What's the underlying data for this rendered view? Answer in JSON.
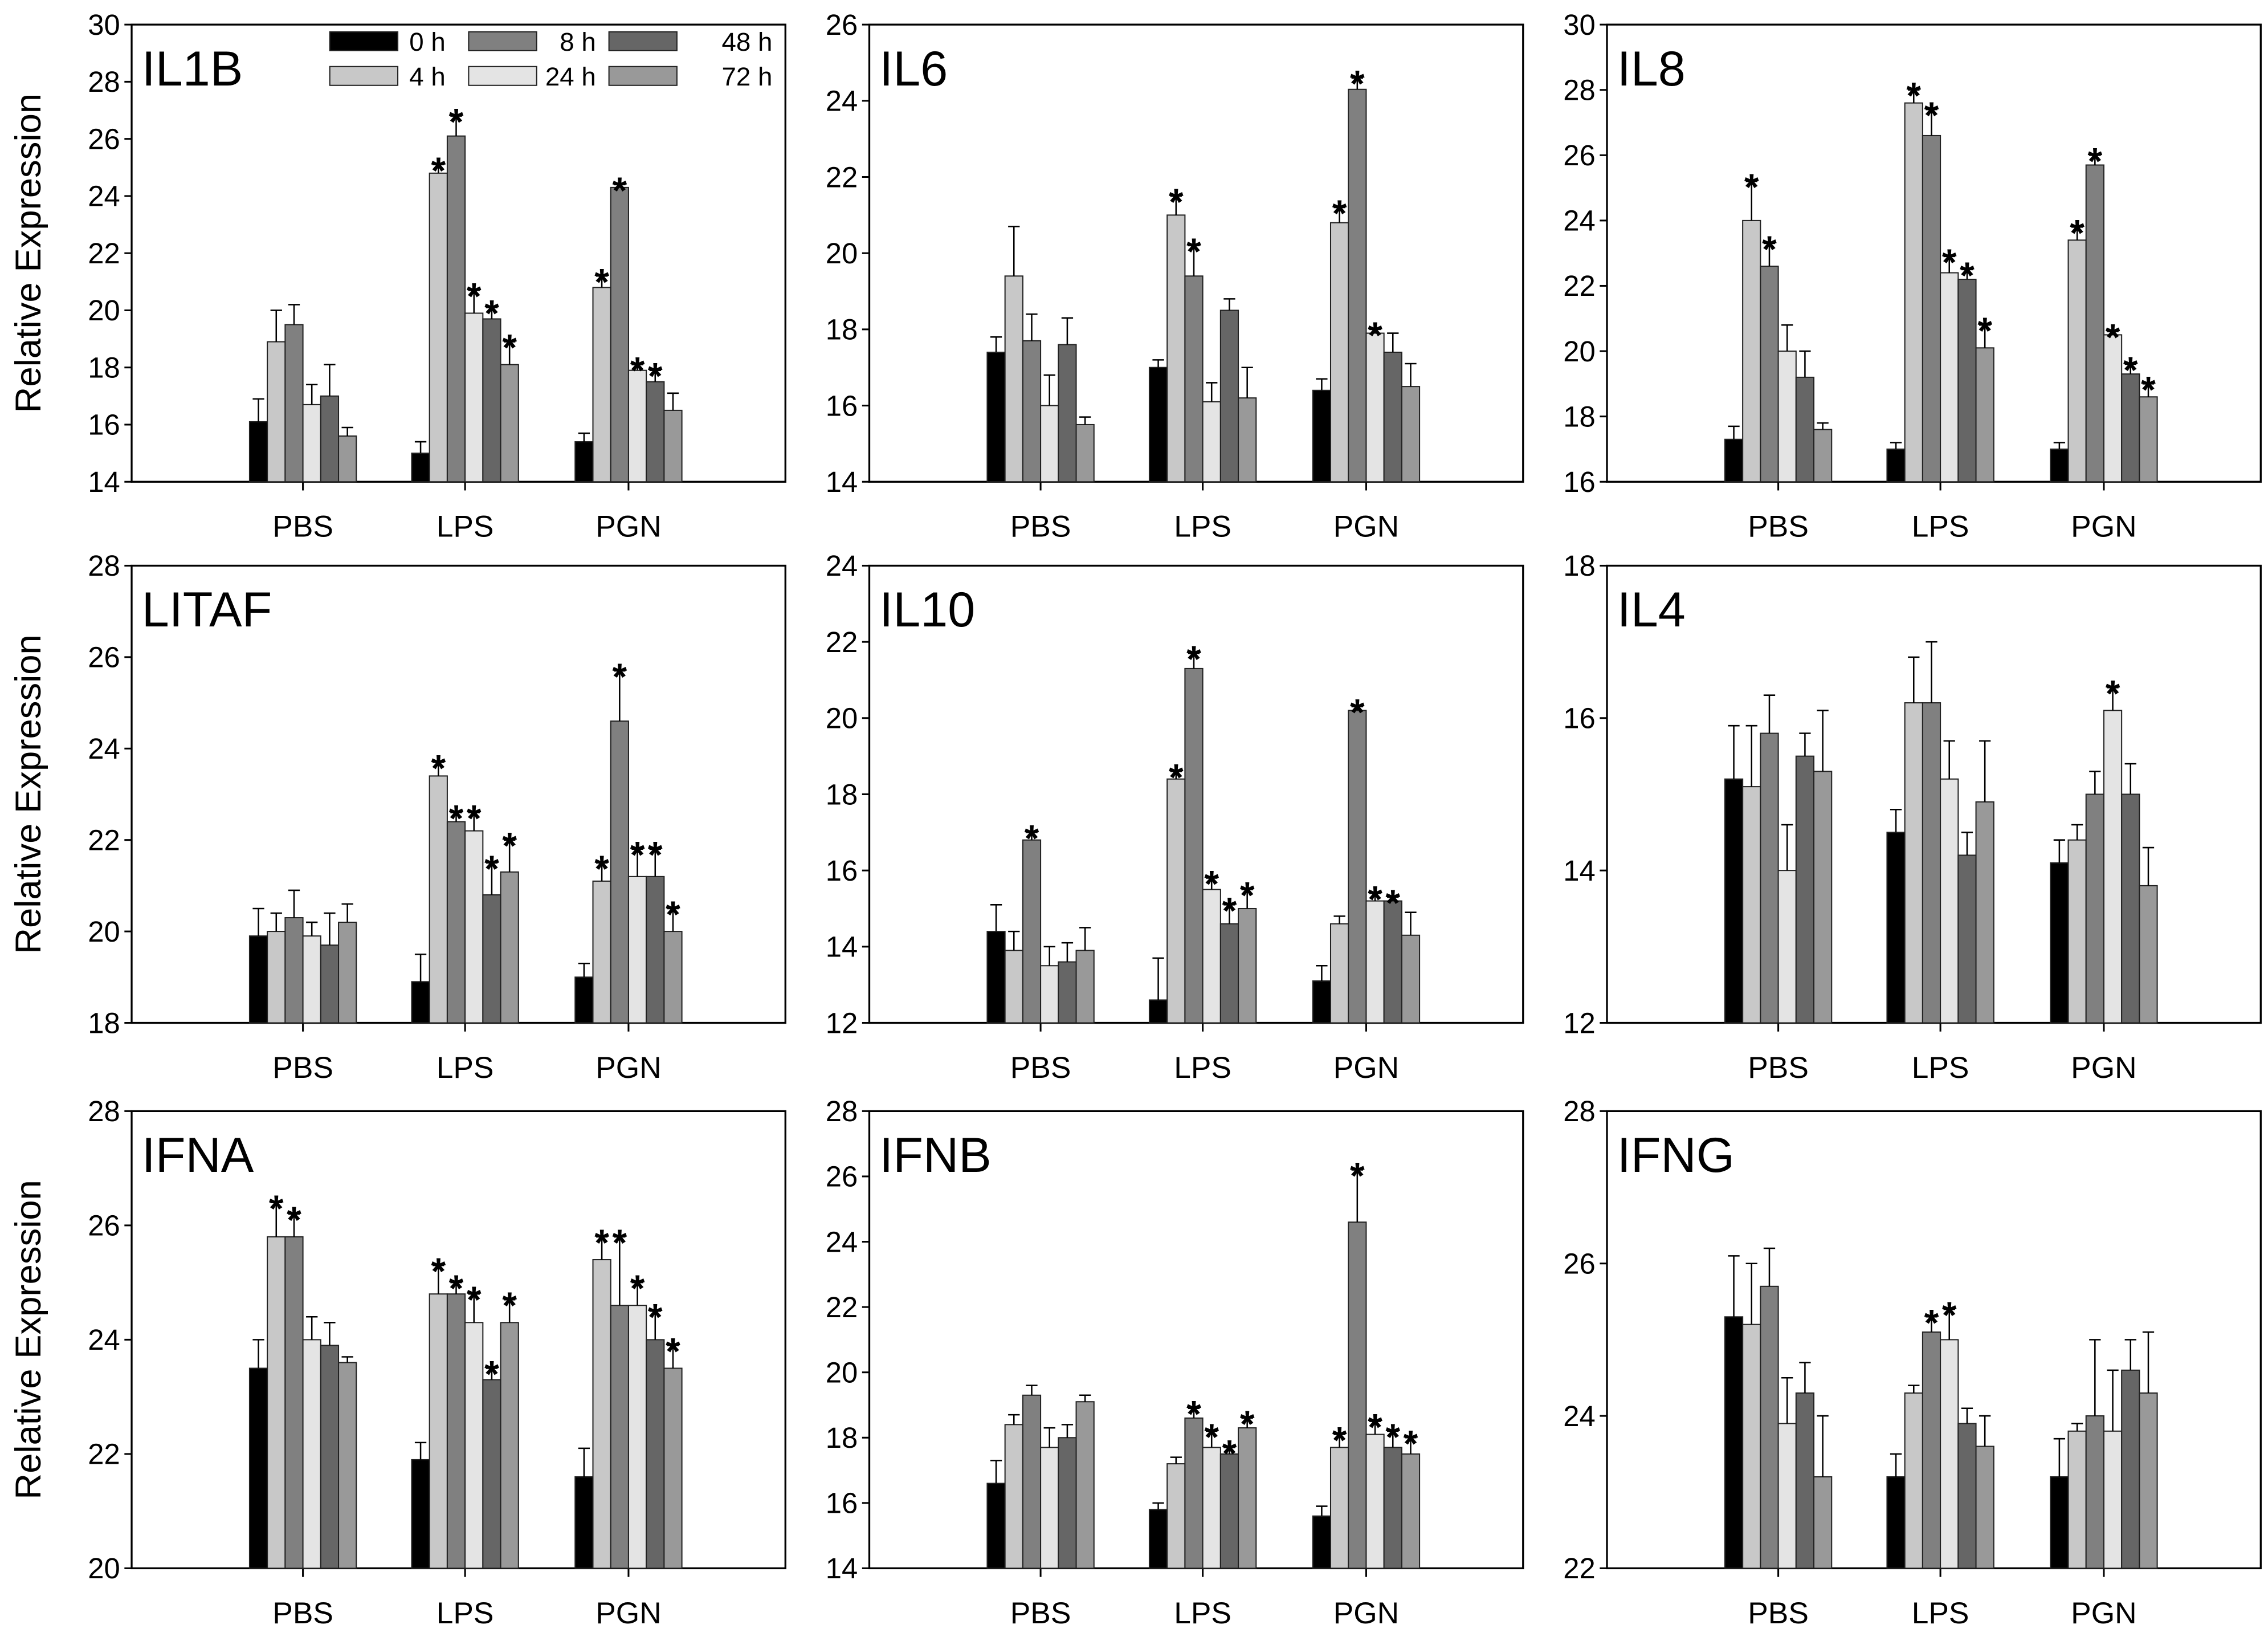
{
  "legend": {
    "entries": [
      "0 h",
      "4 h",
      "8 h",
      "24 h",
      "48 h",
      "72 h"
    ],
    "colors": [
      "#000000",
      "#c8c8c8",
      "#808080",
      "#e4e4e4",
      "#666666",
      "#999999"
    ],
    "placement": "top-right of IL1B panel"
  },
  "ylabel": "Relative Expression",
  "chart_data": [
    {
      "type": "bar",
      "title": "IL1B",
      "ylim": [
        14,
        30
      ],
      "yticks": [
        14,
        16,
        18,
        20,
        22,
        24,
        26,
        28,
        30
      ],
      "categories": [
        "PBS",
        "LPS",
        "PGN"
      ],
      "groups": [
        {
          "category": "PBS",
          "values": [
            16.1,
            18.9,
            19.5,
            16.7,
            17.0,
            15.6
          ],
          "error_upper": [
            16.9,
            20.0,
            20.2,
            17.4,
            18.1,
            15.9
          ],
          "significant": [
            0,
            0,
            0,
            0,
            0,
            0
          ]
        },
        {
          "category": "LPS",
          "values": [
            15.0,
            24.8,
            26.1,
            19.9,
            19.7,
            18.1
          ],
          "error_upper": [
            15.4,
            25.1,
            26.8,
            20.7,
            20.1,
            18.9
          ],
          "significant": [
            0,
            1,
            1,
            1,
            1,
            1
          ]
        },
        {
          "category": "PGN",
          "values": [
            15.4,
            20.8,
            24.3,
            17.9,
            17.5,
            16.5
          ],
          "error_upper": [
            15.7,
            21.2,
            24.4,
            18.1,
            17.9,
            17.1
          ],
          "significant": [
            0,
            1,
            1,
            1,
            1,
            0
          ]
        }
      ]
    },
    {
      "type": "bar",
      "title": "IL6",
      "ylim": [
        14,
        26
      ],
      "yticks": [
        14,
        16,
        18,
        20,
        22,
        24,
        26
      ],
      "categories": [
        "PBS",
        "LPS",
        "PGN"
      ],
      "groups": [
        {
          "category": "PBS",
          "values": [
            17.4,
            19.4,
            17.7,
            16.0,
            17.6,
            15.5
          ],
          "error_upper": [
            17.8,
            20.7,
            18.4,
            16.8,
            18.3,
            15.7
          ],
          "significant": [
            0,
            0,
            0,
            0,
            0,
            0
          ]
        },
        {
          "category": "LPS",
          "values": [
            17.0,
            21.0,
            19.4,
            16.1,
            18.5,
            16.2
          ],
          "error_upper": [
            17.2,
            21.5,
            20.2,
            16.6,
            18.8,
            17.0
          ],
          "significant": [
            0,
            1,
            1,
            0,
            0,
            0
          ]
        },
        {
          "category": "PGN",
          "values": [
            16.4,
            20.8,
            24.3,
            17.9,
            17.4,
            16.5
          ],
          "error_upper": [
            16.7,
            21.2,
            24.6,
            18.0,
            17.9,
            17.1
          ],
          "significant": [
            0,
            1,
            1,
            1,
            0,
            0
          ]
        }
      ]
    },
    {
      "type": "bar",
      "title": "IL8",
      "ylim": [
        16,
        30
      ],
      "yticks": [
        16,
        18,
        20,
        22,
        24,
        26,
        28,
        30
      ],
      "categories": [
        "PBS",
        "LPS",
        "PGN"
      ],
      "groups": [
        {
          "category": "PBS",
          "values": [
            17.3,
            24.0,
            22.6,
            20.0,
            19.2,
            17.6
          ],
          "error_upper": [
            17.7,
            25.2,
            23.3,
            20.8,
            20.0,
            17.8
          ],
          "significant": [
            0,
            1,
            1,
            0,
            0,
            0
          ]
        },
        {
          "category": "LPS",
          "values": [
            17.0,
            27.6,
            26.6,
            22.4,
            22.2,
            20.1
          ],
          "error_upper": [
            17.2,
            28.0,
            27.4,
            22.9,
            22.5,
            20.8
          ],
          "significant": [
            0,
            1,
            1,
            1,
            1,
            1
          ]
        },
        {
          "category": "PGN",
          "values": [
            17.0,
            23.4,
            25.7,
            20.5,
            19.3,
            18.6
          ],
          "error_upper": [
            17.2,
            23.8,
            26.0,
            20.6,
            19.6,
            19.0
          ],
          "significant": [
            0,
            1,
            1,
            1,
            1,
            1
          ]
        }
      ]
    },
    {
      "type": "bar",
      "title": "LITAF",
      "ylim": [
        18,
        28
      ],
      "yticks": [
        18,
        20,
        22,
        24,
        26,
        28
      ],
      "categories": [
        "PBS",
        "LPS",
        "PGN"
      ],
      "groups": [
        {
          "category": "PBS",
          "values": [
            19.9,
            20.0,
            20.3,
            19.9,
            19.7,
            20.2
          ],
          "error_upper": [
            20.5,
            20.4,
            20.9,
            20.2,
            20.4,
            20.6
          ],
          "significant": [
            0,
            0,
            0,
            0,
            0,
            0
          ]
        },
        {
          "category": "LPS",
          "values": [
            18.9,
            23.4,
            22.4,
            22.2,
            20.8,
            21.3
          ],
          "error_upper": [
            19.5,
            23.7,
            22.6,
            22.6,
            21.5,
            22.0
          ],
          "significant": [
            0,
            1,
            1,
            1,
            1,
            1
          ]
        },
        {
          "category": "PGN",
          "values": [
            19.0,
            21.1,
            24.6,
            21.2,
            21.2,
            20.0
          ],
          "error_upper": [
            19.3,
            21.5,
            25.7,
            21.8,
            21.8,
            20.5
          ],
          "significant": [
            0,
            1,
            1,
            1,
            1,
            1
          ]
        }
      ]
    },
    {
      "type": "bar",
      "title": "IL10",
      "ylim": [
        12,
        24
      ],
      "yticks": [
        12,
        14,
        16,
        18,
        20,
        22,
        24
      ],
      "categories": [
        "PBS",
        "LPS",
        "PGN"
      ],
      "groups": [
        {
          "category": "PBS",
          "values": [
            14.4,
            13.9,
            16.8,
            13.5,
            13.6,
            13.9
          ],
          "error_upper": [
            15.1,
            14.4,
            17.0,
            14.0,
            14.1,
            14.5
          ],
          "significant": [
            0,
            0,
            1,
            0,
            0,
            0
          ]
        },
        {
          "category": "LPS",
          "values": [
            12.6,
            18.4,
            21.3,
            15.5,
            14.6,
            15.0
          ],
          "error_upper": [
            13.7,
            18.6,
            21.7,
            15.8,
            15.1,
            15.5
          ],
          "significant": [
            0,
            1,
            1,
            1,
            1,
            1
          ]
        },
        {
          "category": "PGN",
          "values": [
            13.1,
            14.6,
            20.2,
            15.2,
            15.2,
            14.3
          ],
          "error_upper": [
            13.5,
            14.8,
            20.3,
            15.4,
            15.3,
            14.9
          ],
          "significant": [
            0,
            0,
            1,
            1,
            1,
            0
          ]
        }
      ]
    },
    {
      "type": "bar",
      "title": "IL4",
      "ylim": [
        12,
        18
      ],
      "yticks": [
        12,
        14,
        16,
        18
      ],
      "categories": [
        "PBS",
        "LPS",
        "PGN"
      ],
      "groups": [
        {
          "category": "PBS",
          "values": [
            15.2,
            15.1,
            15.8,
            14.0,
            15.5,
            15.3
          ],
          "error_upper": [
            15.9,
            15.9,
            16.3,
            14.6,
            15.8,
            16.1
          ],
          "significant": [
            0,
            0,
            0,
            0,
            0,
            0
          ]
        },
        {
          "category": "LPS",
          "values": [
            14.5,
            16.2,
            16.2,
            15.2,
            14.2,
            14.9
          ],
          "error_upper": [
            14.8,
            16.8,
            17.0,
            15.7,
            14.5,
            15.7
          ],
          "significant": [
            0,
            0,
            0,
            0,
            0,
            0
          ]
        },
        {
          "category": "PGN",
          "values": [
            14.1,
            14.4,
            15.0,
            16.1,
            15.0,
            13.8
          ],
          "error_upper": [
            14.4,
            14.6,
            15.3,
            16.4,
            15.4,
            14.3
          ],
          "significant": [
            0,
            0,
            0,
            1,
            0,
            0
          ]
        }
      ]
    },
    {
      "type": "bar",
      "title": "IFNA",
      "ylim": [
        20,
        28
      ],
      "yticks": [
        20,
        22,
        24,
        26,
        28
      ],
      "categories": [
        "PBS",
        "LPS",
        "PGN"
      ],
      "groups": [
        {
          "category": "PBS",
          "values": [
            23.5,
            25.8,
            25.8,
            24.0,
            23.9,
            23.6
          ],
          "error_upper": [
            24.0,
            26.4,
            26.2,
            24.4,
            24.3,
            23.7
          ],
          "significant": [
            0,
            1,
            1,
            0,
            0,
            0
          ]
        },
        {
          "category": "LPS",
          "values": [
            21.9,
            24.8,
            24.8,
            24.3,
            23.3,
            24.3
          ],
          "error_upper": [
            22.2,
            25.3,
            25.0,
            24.8,
            23.5,
            24.7
          ],
          "significant": [
            0,
            1,
            1,
            1,
            1,
            1
          ]
        },
        {
          "category": "PGN",
          "values": [
            21.6,
            25.4,
            24.6,
            24.6,
            24.0,
            23.5
          ],
          "error_upper": [
            22.1,
            25.8,
            25.8,
            25.0,
            24.5,
            23.9
          ],
          "significant": [
            0,
            1,
            1,
            1,
            1,
            1
          ]
        }
      ]
    },
    {
      "type": "bar",
      "title": "IFNB",
      "ylim": [
        14,
        28
      ],
      "yticks": [
        14,
        16,
        18,
        20,
        22,
        24,
        26,
        28
      ],
      "categories": [
        "PBS",
        "LPS",
        "PGN"
      ],
      "groups": [
        {
          "category": "PBS",
          "values": [
            16.6,
            18.4,
            19.3,
            17.7,
            18.0,
            19.1
          ],
          "error_upper": [
            17.3,
            18.7,
            19.6,
            18.3,
            18.4,
            19.3
          ],
          "significant": [
            0,
            0,
            0,
            0,
            0,
            0
          ]
        },
        {
          "category": "LPS",
          "values": [
            15.8,
            17.2,
            18.6,
            17.7,
            17.5,
            18.3
          ],
          "error_upper": [
            16.0,
            17.4,
            18.9,
            18.2,
            17.7,
            18.6
          ],
          "significant": [
            0,
            0,
            1,
            1,
            1,
            1
          ]
        },
        {
          "category": "PGN",
          "values": [
            15.6,
            17.7,
            24.6,
            18.1,
            17.7,
            17.5
          ],
          "error_upper": [
            15.9,
            18.1,
            26.2,
            18.5,
            18.2,
            18.0
          ],
          "significant": [
            0,
            1,
            1,
            1,
            1,
            1
          ]
        }
      ]
    },
    {
      "type": "bar",
      "title": "IFNG",
      "ylim": [
        22,
        28
      ],
      "yticks": [
        22,
        24,
        26,
        28
      ],
      "categories": [
        "PBS",
        "LPS",
        "PGN"
      ],
      "groups": [
        {
          "category": "PBS",
          "values": [
            25.3,
            25.2,
            25.7,
            23.9,
            24.3,
            23.2
          ],
          "error_upper": [
            26.1,
            26.0,
            26.2,
            24.5,
            24.7,
            24.0
          ],
          "significant": [
            0,
            0,
            0,
            0,
            0,
            0
          ]
        },
        {
          "category": "LPS",
          "values": [
            23.2,
            24.3,
            25.1,
            25.0,
            23.9,
            23.6
          ],
          "error_upper": [
            23.5,
            24.4,
            25.3,
            25.4,
            24.1,
            24.0
          ],
          "significant": [
            0,
            0,
            1,
            1,
            0,
            0
          ]
        },
        {
          "category": "PGN",
          "values": [
            23.2,
            23.8,
            24.0,
            23.8,
            24.6,
            24.3
          ],
          "error_upper": [
            23.7,
            23.9,
            25.0,
            24.6,
            25.0,
            25.1
          ],
          "significant": [
            0,
            0,
            0,
            0,
            0,
            0
          ]
        }
      ]
    }
  ],
  "significance_marker": "*"
}
